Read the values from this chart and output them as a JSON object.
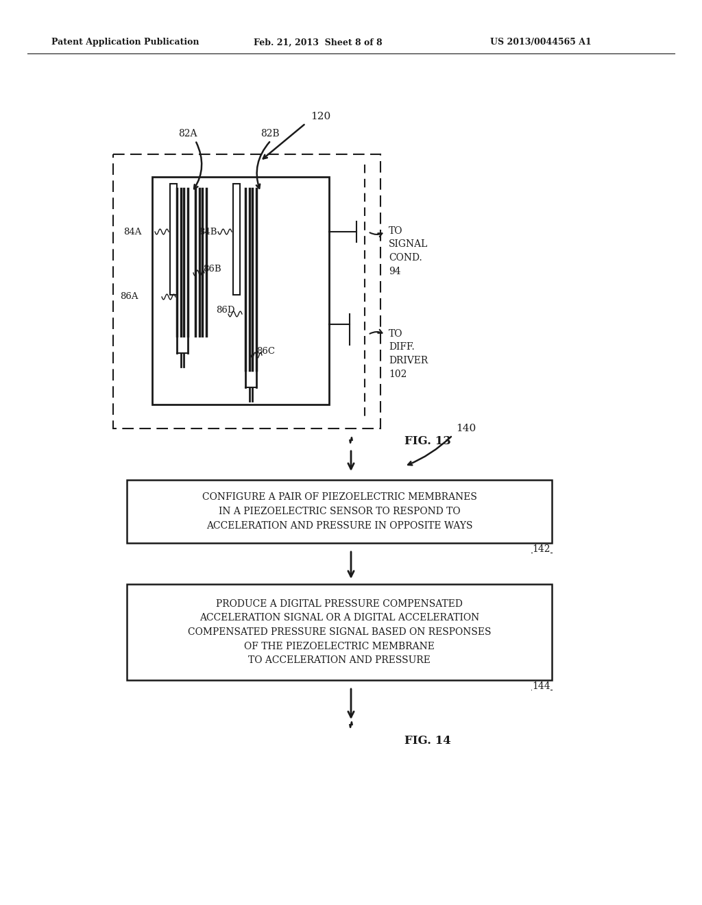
{
  "bg_color": "#ffffff",
  "text_color": "#1a1a1a",
  "header_left": "Patent Application Publication",
  "header_center": "Feb. 21, 2013  Sheet 8 of 8",
  "header_right": "US 2013/0044565 A1",
  "fig13_label": "FIG. 13",
  "fig14_label": "FIG. 14",
  "ref_120": "120",
  "ref_82A": "82A",
  "ref_82B": "82B",
  "ref_84A": "84A",
  "ref_84B": "84B",
  "ref_86A": "86A",
  "ref_86B": "86B",
  "ref_86C": "86C",
  "ref_86D": "86D",
  "to_signal": "TO\nSIGNAL\nCOND.\n94",
  "to_diff": "TO\nDIFF.\nDRIVER\n102",
  "ref_140": "140",
  "ref_142": "142",
  "ref_144": "144",
  "box1_text": "CONFIGURE A PAIR OF PIEZOELECTRIC MEMBRANES\nIN A PIEZOELECTRIC SENSOR TO RESPOND TO\nACCELERATION AND PRESSURE IN OPPOSITE WAYS",
  "box2_text": "PRODUCE A DIGITAL PRESSURE COMPENSATED\nACCELERATION SIGNAL OR A DIGITAL ACCELERATION\nCOMPENSATED PRESSURE SIGNAL BASED ON RESPONSES\nOF THE PIEZOELECTRIC MEMBRANE\nTO ACCELERATION AND PRESSURE"
}
